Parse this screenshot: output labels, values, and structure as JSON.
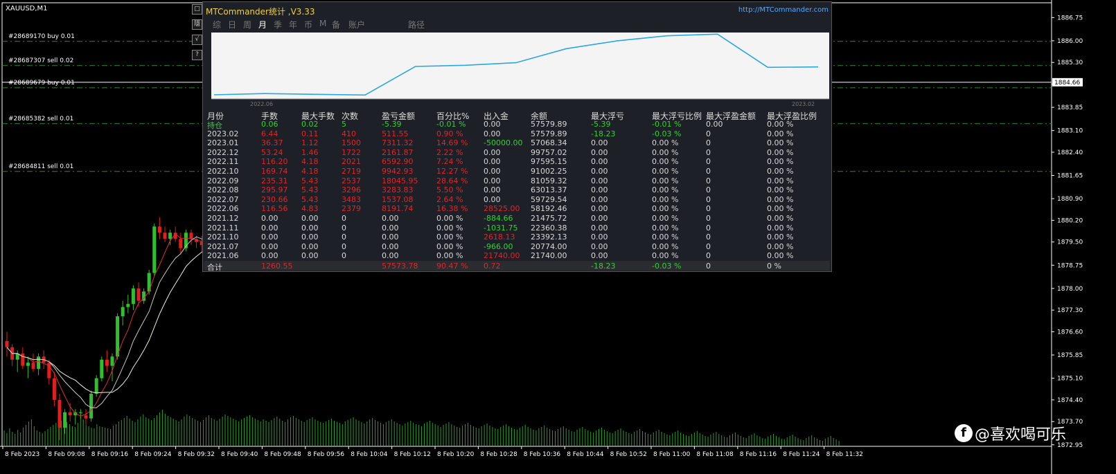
{
  "symbol": "XAUUSD,M1",
  "orders": [
    {
      "label": "#28689170 buy 0.01",
      "price": 1885.98
    },
    {
      "label": "#28687307 sell 0.02",
      "price": 1885.2
    },
    {
      "label": "#28689679 buy 0.01",
      "price": 1884.48
    },
    {
      "label": "#28685382 sell 0.01",
      "price": 1883.32
    },
    {
      "label": "#28684811 sell 0.01",
      "price": 1881.78
    }
  ],
  "side_buttons": [
    "□",
    "隱",
    "√",
    "?"
  ],
  "current_price": "1884.66",
  "price_axis": [
    "1886.75",
    "1886.00",
    "1885.30",
    "1884.60",
    "1883.85",
    "1883.10",
    "1882.40",
    "1881.65",
    "1880.90",
    "1880.20",
    "1879.50",
    "1878.75",
    "1878.00",
    "1877.30",
    "1876.60",
    "1875.85",
    "1875.10",
    "1874.40",
    "1873.70",
    "1872.95"
  ],
  "time_axis": [
    "8 Feb 2023",
    "8 Feb 09:08",
    "8 Feb 09:16",
    "8 Feb 09:24",
    "8 Feb 09:32",
    "8 Feb 09:40",
    "8 Feb 09:48",
    "8 Feb 09:56",
    "8 Feb 10:04",
    "8 Feb 10:12",
    "8 Feb 10:20",
    "8 Feb 10:28",
    "8 Feb 10:36",
    "8 Feb 10:44",
    "8 Feb 10:52",
    "8 Feb 11:00",
    "8 Feb 11:08",
    "8 Feb 11:16",
    "8 Feb 11:24",
    "8 Feb 11:32"
  ],
  "candles": [
    [
      1876.3,
      1876.6,
      1875.8,
      1876.1
    ],
    [
      1876.1,
      1876.2,
      1875.5,
      1875.7
    ],
    [
      1875.7,
      1876.0,
      1875.3,
      1875.9
    ],
    [
      1875.9,
      1876.1,
      1875.4,
      1875.5
    ],
    [
      1875.5,
      1875.8,
      1875.1,
      1875.6
    ],
    [
      1875.6,
      1875.9,
      1875.3,
      1875.4
    ],
    [
      1875.4,
      1875.9,
      1875.2,
      1875.8
    ],
    [
      1875.8,
      1876.0,
      1875.4,
      1875.6
    ],
    [
      1875.6,
      1875.7,
      1874.9,
      1875.1
    ],
    [
      1875.1,
      1875.3,
      1874.2,
      1874.4
    ],
    [
      1874.4,
      1874.6,
      1873.1,
      1873.5
    ],
    [
      1873.5,
      1874.1,
      1873.3,
      1874.0
    ],
    [
      1874.0,
      1874.3,
      1873.7,
      1873.9
    ],
    [
      1873.9,
      1874.1,
      1873.6,
      1874.0
    ],
    [
      1874.0,
      1874.1,
      1873.8,
      1874.0
    ],
    [
      1873.9,
      1874.1,
      1873.6,
      1873.8
    ],
    [
      1873.8,
      1874.7,
      1873.7,
      1874.6
    ],
    [
      1874.6,
      1875.2,
      1874.5,
      1875.1
    ],
    [
      1875.1,
      1875.8,
      1875.0,
      1875.7
    ],
    [
      1875.7,
      1876.0,
      1875.3,
      1875.5
    ],
    [
      1875.5,
      1875.9,
      1875.0,
      1875.8
    ],
    [
      1875.8,
      1877.2,
      1875.7,
      1877.1
    ],
    [
      1877.1,
      1877.6,
      1876.8,
      1877.4
    ],
    [
      1877.4,
      1877.8,
      1877.2,
      1877.5
    ],
    [
      1877.5,
      1878.1,
      1877.3,
      1878.0
    ],
    [
      1878.0,
      1878.2,
      1877.4,
      1877.6
    ],
    [
      1877.6,
      1878.0,
      1877.5,
      1877.9
    ],
    [
      1877.9,
      1878.6,
      1877.8,
      1878.5
    ],
    [
      1878.5,
      1880.1,
      1878.4,
      1880.0
    ],
    [
      1880.0,
      1880.3,
      1879.6,
      1879.8
    ],
    [
      1879.8,
      1880.0,
      1879.5,
      1879.6
    ],
    [
      1879.6,
      1879.9,
      1879.4,
      1879.8
    ],
    [
      1879.8,
      1880.0,
      1879.5,
      1879.6
    ],
    [
      1879.6,
      1879.8,
      1879.1,
      1879.3
    ],
    [
      1879.3,
      1879.9,
      1879.2,
      1879.8
    ],
    [
      1879.8,
      1879.9,
      1879.4,
      1879.6
    ],
    [
      1879.6,
      1879.7,
      1879.3,
      1879.5
    ],
    [
      1879.5,
      1879.7,
      1879.2,
      1879.4
    ],
    [
      1879.4,
      1879.6,
      1879.2,
      1879.5
    ]
  ],
  "volume": [
    22,
    18,
    25,
    20,
    17,
    23,
    19,
    26,
    30,
    35,
    38,
    28,
    22,
    20,
    18,
    21,
    24,
    27,
    30,
    33,
    29,
    36,
    40,
    34,
    31,
    28,
    27,
    33,
    42,
    38,
    30,
    28,
    26,
    25,
    31,
    28,
    27,
    26,
    25,
    24,
    29,
    31,
    35,
    37,
    40,
    43,
    39,
    36,
    34,
    38,
    42,
    45,
    41,
    39,
    37,
    40,
    44,
    48,
    52,
    46,
    43,
    41,
    39,
    37,
    35,
    38,
    42,
    45,
    43,
    40,
    38,
    36,
    34,
    37,
    41,
    44,
    40,
    38,
    36,
    39,
    42,
    45,
    43,
    41,
    39,
    37,
    35,
    38,
    40,
    42,
    44,
    41,
    39,
    37,
    35,
    38,
    36,
    34,
    37,
    40,
    42,
    39,
    36,
    34,
    38,
    41,
    43,
    40,
    38,
    36,
    34,
    37,
    39,
    41,
    38,
    36,
    34,
    33,
    35,
    37,
    39,
    36,
    34,
    33,
    31,
    35,
    37,
    39,
    41,
    38,
    36,
    34,
    32,
    35,
    38,
    40,
    37,
    35,
    33,
    31,
    34,
    36,
    38,
    35,
    33,
    31,
    29,
    32,
    34,
    36,
    33,
    31,
    30,
    28,
    32,
    34,
    36,
    33,
    31,
    29,
    27,
    30,
    32,
    34,
    31,
    29,
    27,
    26,
    29,
    31,
    33,
    30,
    28,
    26,
    25,
    28,
    30,
    32,
    29,
    27,
    25,
    24,
    27,
    29,
    31,
    28,
    26,
    24,
    23,
    26,
    28,
    30,
    27,
    25,
    23,
    22,
    25,
    27,
    29,
    26,
    24,
    22,
    21,
    24,
    26,
    28,
    25,
    23,
    21,
    20,
    23,
    25,
    27,
    24,
    22,
    20,
    19,
    22,
    24,
    26,
    23,
    21,
    19,
    18,
    21,
    23,
    25,
    22,
    20,
    18,
    17,
    20,
    22,
    24,
    21,
    19,
    17,
    16,
    19,
    21,
    23,
    20,
    18,
    16,
    15,
    18,
    20,
    22,
    19,
    17,
    15,
    14,
    17,
    19,
    21,
    18,
    16,
    14,
    13,
    16,
    18,
    20,
    17,
    15,
    13,
    12,
    15,
    17,
    19,
    16,
    14,
    12,
    11,
    14,
    16,
    18,
    15,
    13,
    11,
    10,
    13,
    15,
    17,
    14,
    12,
    10,
    9,
    12,
    14,
    16,
    13,
    11,
    9,
    8,
    11,
    13,
    15,
    12,
    10,
    8,
    7,
    10,
    12,
    14,
    11,
    9,
    7
  ],
  "panel": {
    "title": "MTCommander统计 ,V3.33",
    "url": "http://MTCommander.com",
    "tabs": [
      "综",
      "日",
      "周",
      "月",
      "季",
      "年",
      "币",
      "M",
      "备",
      "账户",
      "路径"
    ],
    "active_tab": 3,
    "mini_chart": {
      "x_start": "2022.06",
      "x_end": "2023.02",
      "balance": [
        21740.0,
        23392.13,
        22360.38,
        21475.72,
        58192.46,
        59729.54,
        63013.37,
        81059.32,
        91002.25,
        97595.15,
        99757.02,
        57068.34,
        57579.89
      ]
    },
    "headers": [
      "月份",
      "手数",
      "最大手数",
      "次数",
      "盈亏金额",
      "百分比%",
      "出入金",
      "余额",
      "最大浮亏",
      "最大浮亏比例",
      "最大浮盈金额",
      "最大浮盈比例"
    ],
    "rows": [
      {
        "c": [
          "持仓",
          "0.06",
          "0.02",
          "5",
          "-5.39",
          "-0.01 %",
          "0.00",
          "57579.89",
          "-5.39",
          "-0.01 %",
          "0.00",
          "0.00 %"
        ],
        "k": [
          "g",
          "g",
          "g",
          "g",
          "g",
          "g",
          "w",
          "w",
          "g",
          "g",
          "w",
          "w"
        ]
      },
      {
        "c": [
          "2023.02",
          "6.44",
          "0.11",
          "410",
          "511.55",
          "0.90 %",
          "0.00",
          "57579.89",
          "-18.23",
          "-0.03 %",
          "0",
          "0.00 %"
        ],
        "k": [
          "w",
          "r",
          "r",
          "r",
          "r",
          "r",
          "w",
          "w",
          "g",
          "g",
          "w",
          "w"
        ]
      },
      {
        "c": [
          "2023.01",
          "36.37",
          "1.12",
          "1500",
          "7311.32",
          "14.69 %",
          "-50000.00",
          "57068.34",
          "0.00",
          "0.00 %",
          "0",
          "0.00 %"
        ],
        "k": [
          "w",
          "r",
          "r",
          "r",
          "r",
          "r",
          "g",
          "w",
          "w",
          "w",
          "w",
          "w"
        ]
      },
      {
        "c": [
          "2022.12",
          "53.24",
          "1.46",
          "1722",
          "2161.87",
          "2.22 %",
          "0.00",
          "99757.02",
          "0.00",
          "0.00 %",
          "0",
          "0.00 %"
        ],
        "k": [
          "w",
          "r",
          "r",
          "r",
          "r",
          "r",
          "w",
          "w",
          "w",
          "w",
          "w",
          "w"
        ]
      },
      {
        "c": [
          "2022.11",
          "116.20",
          "4.18",
          "2021",
          "6592.90",
          "7.24 %",
          "0.00",
          "97595.15",
          "0.00",
          "0.00 %",
          "0",
          "0.00 %"
        ],
        "k": [
          "w",
          "r",
          "r",
          "r",
          "r",
          "r",
          "w",
          "w",
          "w",
          "w",
          "w",
          "w"
        ]
      },
      {
        "c": [
          "2022.10",
          "169.74",
          "4.18",
          "2719",
          "9942.93",
          "12.27 %",
          "0.00",
          "91002.25",
          "0.00",
          "0.00 %",
          "0",
          "0.00 %"
        ],
        "k": [
          "w",
          "r",
          "r",
          "r",
          "r",
          "r",
          "w",
          "w",
          "w",
          "w",
          "w",
          "w"
        ]
      },
      {
        "c": [
          "2022.09",
          "235.31",
          "5.43",
          "2537",
          "18045.95",
          "28.64 %",
          "0.00",
          "81059.32",
          "0.00",
          "0.00 %",
          "0",
          "0.00 %"
        ],
        "k": [
          "w",
          "r",
          "r",
          "r",
          "r",
          "r",
          "w",
          "w",
          "w",
          "w",
          "w",
          "w"
        ]
      },
      {
        "c": [
          "2022.08",
          "295.97",
          "5.43",
          "3296",
          "3283.83",
          "5.50 %",
          "0.00",
          "63013.37",
          "0.00",
          "0.00 %",
          "0",
          "0.00 %"
        ],
        "k": [
          "w",
          "r",
          "r",
          "r",
          "r",
          "r",
          "w",
          "w",
          "w",
          "w",
          "w",
          "w"
        ]
      },
      {
        "c": [
          "2022.07",
          "230.66",
          "5.43",
          "3483",
          "1537.08",
          "2.64 %",
          "0.00",
          "59729.54",
          "0.00",
          "0.00 %",
          "0",
          "0.00 %"
        ],
        "k": [
          "w",
          "r",
          "r",
          "r",
          "r",
          "r",
          "w",
          "w",
          "w",
          "w",
          "w",
          "w"
        ]
      },
      {
        "c": [
          "2022.06",
          "116.56",
          "4.83",
          "2379",
          "8191.74",
          "16.38 %",
          "28525.00",
          "58192.46",
          "0.00",
          "0.00 %",
          "0",
          "0.00 %"
        ],
        "k": [
          "w",
          "r",
          "r",
          "r",
          "r",
          "r",
          "r",
          "w",
          "w",
          "w",
          "w",
          "w"
        ]
      },
      {
        "c": [
          "2021.12",
          "0.00",
          "0.00",
          "0",
          "0.00",
          "0.00 %",
          "-884.66",
          "21475.72",
          "0.00",
          "0.00 %",
          "0",
          "0.00 %"
        ],
        "k": [
          "w",
          "w",
          "w",
          "w",
          "w",
          "w",
          "g",
          "w",
          "w",
          "w",
          "w",
          "w"
        ]
      },
      {
        "c": [
          "2021.11",
          "0.00",
          "0.00",
          "0",
          "0.00",
          "0.00 %",
          "-1031.75",
          "22360.38",
          "0.00",
          "0.00 %",
          "0",
          "0.00 %"
        ],
        "k": [
          "w",
          "w",
          "w",
          "w",
          "w",
          "w",
          "g",
          "w",
          "w",
          "w",
          "w",
          "w"
        ]
      },
      {
        "c": [
          "2021.10",
          "0.00",
          "0.00",
          "0",
          "0.00",
          "0.00 %",
          "2618.13",
          "23392.13",
          "0.00",
          "0.00 %",
          "0",
          "0.00 %"
        ],
        "k": [
          "w",
          "w",
          "w",
          "w",
          "w",
          "w",
          "r",
          "w",
          "w",
          "w",
          "w",
          "w"
        ]
      },
      {
        "c": [
          "2021.07",
          "0.00",
          "0.00",
          "0",
          "0.00",
          "0.00 %",
          "-966.00",
          "20774.00",
          "0.00",
          "0.00 %",
          "0",
          "0.00 %"
        ],
        "k": [
          "w",
          "w",
          "w",
          "w",
          "w",
          "w",
          "g",
          "w",
          "w",
          "w",
          "w",
          "w"
        ]
      },
      {
        "c": [
          "2021.06",
          "0.00",
          "0.00",
          "0",
          "0.00",
          "0.00 %",
          "21740.00",
          "21740.00",
          "0.00",
          "0.00 %",
          "0",
          "0.00 %"
        ],
        "k": [
          "w",
          "w",
          "w",
          "w",
          "w",
          "w",
          "r",
          "w",
          "w",
          "w",
          "w",
          "w"
        ]
      }
    ],
    "total": {
      "c": [
        "合计",
        "1260.55",
        "",
        "",
        "57573.78",
        "90.47 %",
        "0.72",
        "",
        "-18.23",
        "-0.03 %",
        "0",
        "0 %"
      ],
      "k": [
        "w",
        "r",
        "w",
        "w",
        "r",
        "r",
        "r",
        "w",
        "g",
        "g",
        "w",
        "w"
      ]
    }
  },
  "watermark": "@喜欢喝可乐",
  "watermark_icon": "f"
}
